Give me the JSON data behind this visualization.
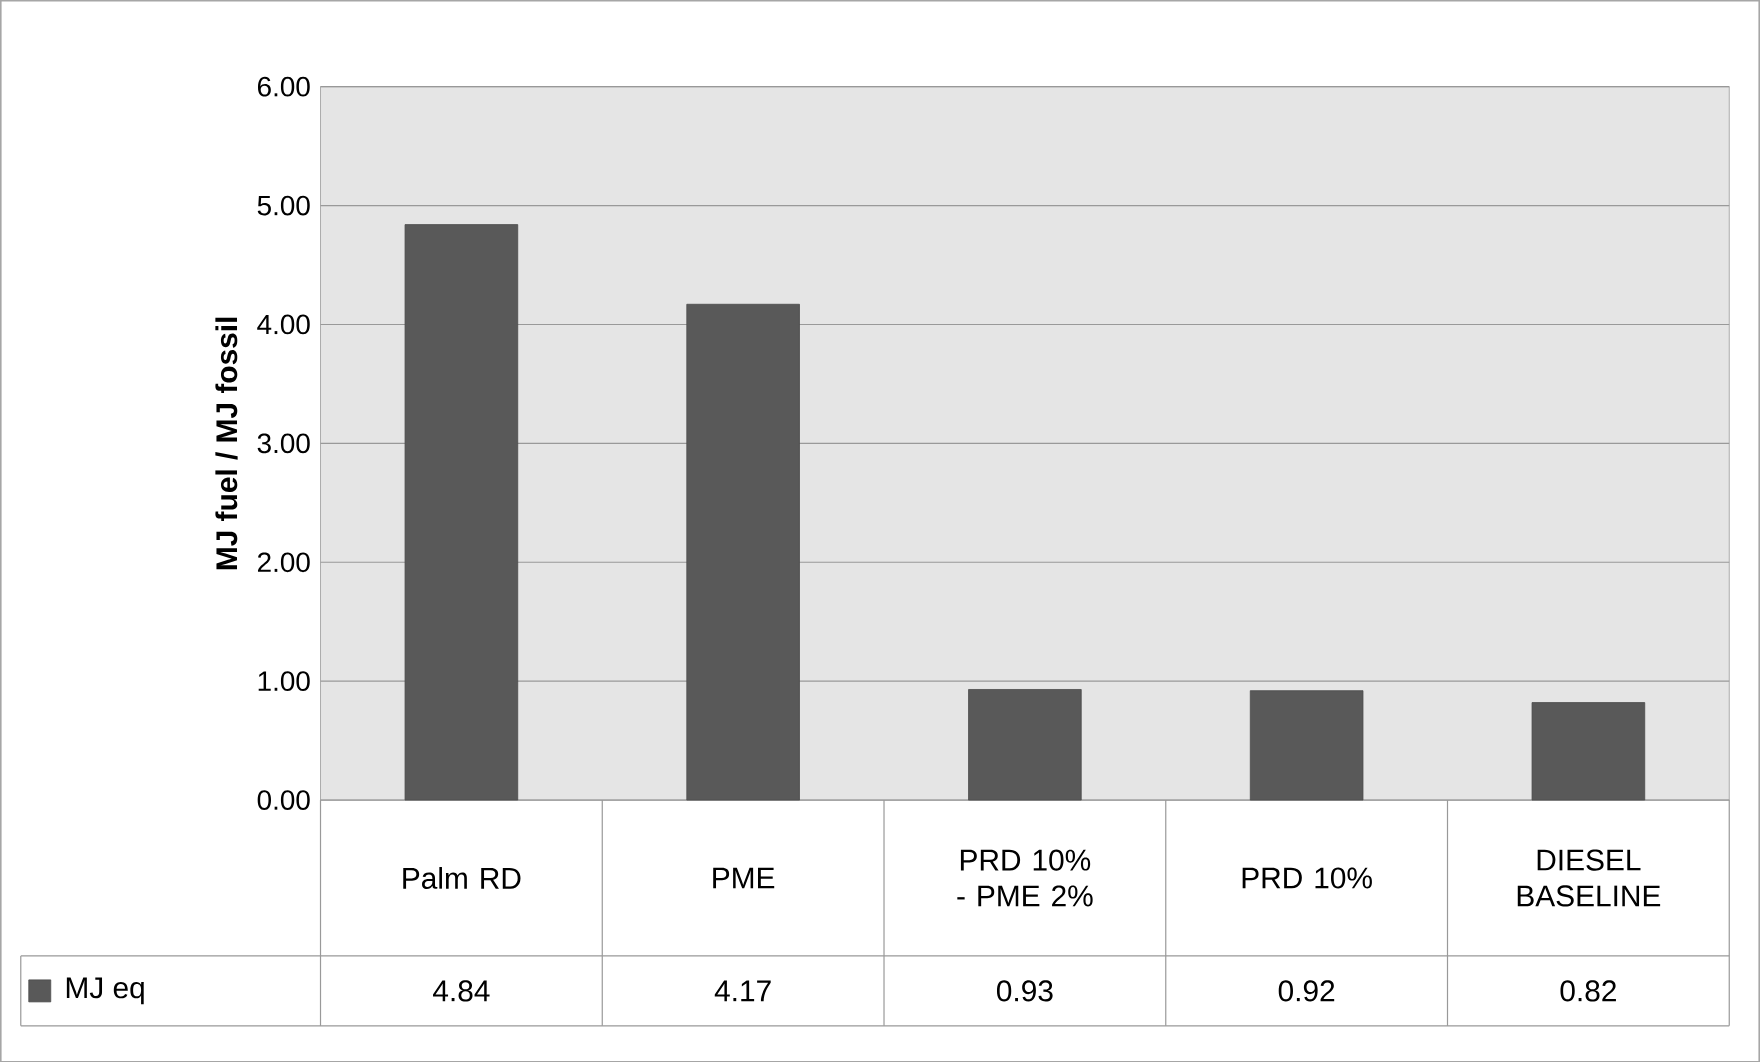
{
  "chart_data": {
    "type": "bar",
    "categories": [
      "Palm RD",
      "PME",
      "PRD 10% - PME 2%",
      "PRD 10%",
      "DIESEL BASELINE"
    ],
    "series": [
      {
        "name": "MJ eq",
        "color": "#595959",
        "values": [
          4.84,
          4.17,
          0.93,
          0.92,
          0.82
        ]
      }
    ],
    "ylabel": "MJ fuel / MJ fossil",
    "ylim": [
      0,
      6
    ],
    "yticks": [
      {
        "value": 0,
        "label": "0.00"
      },
      {
        "value": 1,
        "label": "1.00"
      },
      {
        "value": 2,
        "label": "2.00"
      },
      {
        "value": 3,
        "label": "3.00"
      },
      {
        "value": 4,
        "label": "4.00"
      },
      {
        "value": 5,
        "label": "5.00"
      },
      {
        "value": 6,
        "label": "6.00"
      }
    ],
    "grid": "y",
    "legend": "bottom",
    "data_labels": true
  }
}
